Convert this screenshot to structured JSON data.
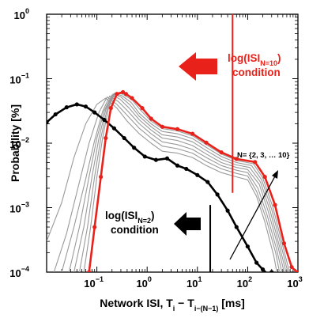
{
  "chart_data": {
    "type": "line",
    "x_scale": "log",
    "y_scale": "log",
    "xlim": [
      0.01,
      1000
    ],
    "ylim": [
      0.0001,
      1
    ],
    "grid": false,
    "xlabel": {
      "main": "Network ISI, T",
      "sub1": "i",
      "mid": " − T",
      "sub2": "i−(N−1)",
      "unit": "  [ms]"
    },
    "ylabel": "Probability [%]",
    "x_ticks": [
      {
        "value": 0.1,
        "base": "10",
        "exp": "−1"
      },
      {
        "value": 1,
        "base": "10",
        "exp": "0"
      },
      {
        "value": 10,
        "base": "10",
        "exp": "1"
      },
      {
        "value": 100,
        "base": "10",
        "exp": "2"
      },
      {
        "value": 1000,
        "base": "10",
        "exp": "3"
      }
    ],
    "y_ticks": [
      {
        "value": 0.0001,
        "base": "10",
        "exp": "−4"
      },
      {
        "value": 0.001,
        "base": "10",
        "exp": "−3"
      },
      {
        "value": 0.01,
        "base": "10",
        "exp": "−2"
      },
      {
        "value": 0.1,
        "base": "10",
        "exp": "−1"
      },
      {
        "value": 1,
        "base": "10",
        "exp": "0"
      }
    ],
    "series": [
      {
        "color": "#000000",
        "role": "N=2",
        "x": [
          0.01,
          0.015,
          0.025,
          0.04,
          0.06,
          0.09,
          0.14,
          0.22,
          0.35,
          0.55,
          0.9,
          1.5,
          2.5,
          4,
          6,
          10,
          16,
          25,
          40,
          60,
          100,
          150,
          200,
          260,
          300
        ],
        "y": [
          0.021,
          0.028,
          0.036,
          0.04,
          0.037,
          0.03,
          0.023,
          0.017,
          0.012,
          0.0085,
          0.0062,
          0.0055,
          0.0058,
          0.0045,
          0.004,
          0.0032,
          0.0025,
          0.0016,
          0.0009,
          0.0005,
          0.00025,
          0.00014,
          0.00011,
          9e-05,
          0.0001
        ]
      },
      {
        "color": "#999999",
        "role": "N=3",
        "x": [
          0.01,
          0.02,
          0.035,
          0.06,
          0.1,
          0.15,
          0.25,
          0.4,
          0.7,
          1.2,
          2,
          4,
          8,
          15,
          30,
          60,
          100,
          150,
          220,
          330,
          380
        ],
        "y": [
          0.0003,
          0.0012,
          0.006,
          0.02,
          0.04,
          0.05,
          0.035,
          0.022,
          0.014,
          0.01,
          0.0075,
          0.007,
          0.006,
          0.0045,
          0.0035,
          0.003,
          0.0027,
          0.0015,
          0.0006,
          0.00018,
          0.0001
        ]
      },
      {
        "color": "#999999",
        "role": "N=4",
        "x": [
          0.014,
          0.025,
          0.045,
          0.07,
          0.11,
          0.16,
          0.25,
          0.4,
          0.7,
          1.2,
          2,
          4,
          8,
          15,
          30,
          60,
          100,
          150,
          230,
          360,
          430
        ],
        "y": [
          0.0001,
          0.0004,
          0.0025,
          0.01,
          0.03,
          0.052,
          0.04,
          0.027,
          0.017,
          0.012,
          0.009,
          0.0082,
          0.007,
          0.0052,
          0.004,
          0.0034,
          0.0031,
          0.0018,
          0.0007,
          0.0002,
          0.0001
        ]
      },
      {
        "color": "#999999",
        "role": "N=5",
        "x": [
          0.02,
          0.035,
          0.06,
          0.09,
          0.13,
          0.18,
          0.27,
          0.42,
          0.7,
          1.2,
          2,
          4,
          8,
          15,
          30,
          60,
          100,
          160,
          240,
          380,
          480
        ],
        "y": [
          0.0001,
          0.0005,
          0.0028,
          0.011,
          0.031,
          0.054,
          0.044,
          0.031,
          0.02,
          0.014,
          0.0105,
          0.0095,
          0.008,
          0.006,
          0.0045,
          0.0038,
          0.0035,
          0.002,
          0.0008,
          0.00022,
          0.0001
        ]
      },
      {
        "color": "#999999",
        "role": "N=6",
        "x": [
          0.028,
          0.045,
          0.07,
          0.1,
          0.14,
          0.2,
          0.29,
          0.44,
          0.7,
          1.2,
          2,
          4,
          8,
          15,
          30,
          60,
          100,
          170,
          260,
          400,
          530
        ],
        "y": [
          0.0001,
          0.0005,
          0.003,
          0.012,
          0.032,
          0.056,
          0.048,
          0.035,
          0.023,
          0.016,
          0.012,
          0.011,
          0.0092,
          0.0068,
          0.005,
          0.0042,
          0.0039,
          0.0023,
          0.00085,
          0.00025,
          0.0001
        ]
      },
      {
        "color": "#999999",
        "role": "N=7",
        "x": [
          0.035,
          0.055,
          0.08,
          0.11,
          0.15,
          0.21,
          0.3,
          0.46,
          0.7,
          1.2,
          2,
          4,
          8,
          15,
          30,
          60,
          110,
          180,
          280,
          430,
          580
        ],
        "y": [
          0.0001,
          0.0005,
          0.003,
          0.012,
          0.033,
          0.058,
          0.052,
          0.039,
          0.026,
          0.018,
          0.0135,
          0.0125,
          0.0105,
          0.0077,
          0.0056,
          0.0046,
          0.0042,
          0.0025,
          0.0009,
          0.00025,
          0.0001
        ]
      },
      {
        "color": "#999999",
        "role": "N=8",
        "x": [
          0.045,
          0.065,
          0.09,
          0.12,
          0.16,
          0.22,
          0.31,
          0.48,
          0.7,
          1.2,
          2,
          4,
          8,
          15,
          30,
          60,
          120,
          190,
          300,
          460,
          630
        ],
        "y": [
          0.0001,
          0.0005,
          0.003,
          0.012,
          0.034,
          0.059,
          0.055,
          0.043,
          0.029,
          0.02,
          0.0152,
          0.014,
          0.0118,
          0.0086,
          0.0062,
          0.005,
          0.0045,
          0.0027,
          0.00095,
          0.00026,
          0.0001
        ]
      },
      {
        "color": "#999999",
        "role": "N=9",
        "x": [
          0.055,
          0.075,
          0.1,
          0.13,
          0.17,
          0.23,
          0.32,
          0.5,
          0.75,
          1.2,
          2,
          4,
          8,
          15,
          30,
          60,
          130,
          200,
          320,
          490,
          680
        ],
        "y": [
          0.0001,
          0.0005,
          0.003,
          0.012,
          0.035,
          0.06,
          0.058,
          0.047,
          0.032,
          0.022,
          0.0168,
          0.0155,
          0.013,
          0.0095,
          0.0068,
          0.0054,
          0.0048,
          0.0029,
          0.001,
          0.00027,
          0.0001
        ]
      },
      {
        "color": "#e8221b",
        "role": "N=10",
        "x": [
          0.07,
          0.09,
          0.12,
          0.15,
          0.19,
          0.25,
          0.33,
          0.38,
          0.5,
          0.8,
          1.2,
          2,
          4,
          8,
          15,
          30,
          60,
          140,
          220,
          350,
          530,
          750,
          950
        ],
        "y": [
          0.0001,
          0.0005,
          0.003,
          0.012,
          0.035,
          0.058,
          0.062,
          0.058,
          0.05,
          0.035,
          0.024,
          0.018,
          0.0165,
          0.014,
          0.0102,
          0.0072,
          0.0057,
          0.0051,
          0.003,
          0.0011,
          0.00028,
          0.00012,
          0.0001
        ]
      }
    ],
    "vlines": [
      {
        "x": 50,
        "color": "#e8221b"
      },
      {
        "x": 18,
        "color": "#000000"
      }
    ],
    "annotations": {
      "red_label_line1": "log(ISI",
      "red_label_sub": "N=10",
      "red_label_close": ")",
      "red_label_line2": "condition",
      "black_label_line1": "log(ISI",
      "black_label_sub": "N=2",
      "black_label_close": ")",
      "black_label_line2": "condition",
      "n_range": "N= {2, 3, … 10}"
    },
    "colors": {
      "highlight": "#e8221b",
      "curves": "#999999",
      "baseline": "#000000"
    }
  }
}
